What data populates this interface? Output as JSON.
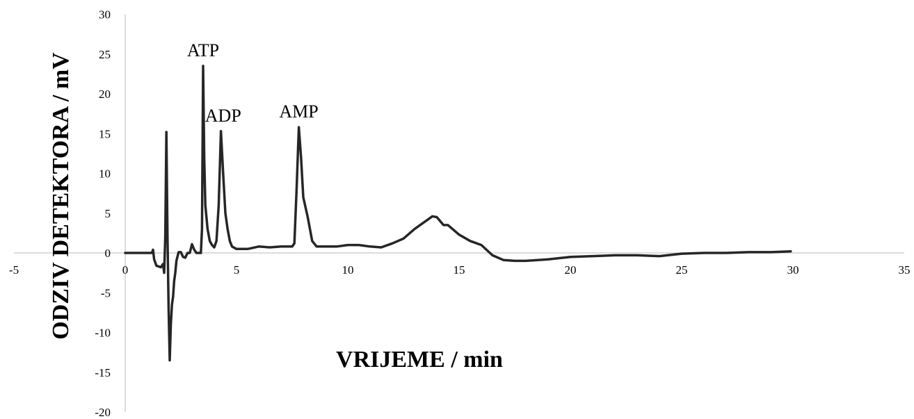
{
  "chart_data": {
    "type": "line",
    "title": "",
    "xlabel": "VRIJEME / min",
    "ylabel": "ODZIV DETEKTORA / mV",
    "xlim": [
      -5,
      35
    ],
    "ylim": [
      -20,
      30
    ],
    "xticks": [
      -5,
      0,
      5,
      10,
      15,
      20,
      25,
      30,
      35
    ],
    "yticks": [
      -20,
      -15,
      -10,
      -5,
      0,
      5,
      10,
      15,
      20,
      25,
      30
    ],
    "grid": false,
    "legend": "none",
    "line_color": "#262626",
    "annotations": [
      {
        "text": "ATP",
        "x": 3.5,
        "y": 23.5
      },
      {
        "text": "ADP",
        "x": 4.4,
        "y": 15.3
      },
      {
        "text": "AMP",
        "x": 7.8,
        "y": 15.8
      }
    ],
    "series": [
      {
        "x": [
          0,
          0.5,
          1.0,
          1.2,
          1.25,
          1.3,
          1.4,
          1.6,
          1.7,
          1.75,
          1.8,
          1.85,
          1.9,
          1.95,
          2.0,
          2.05,
          2.1,
          2.15,
          2.2,
          2.25,
          2.3,
          2.4,
          2.5,
          2.6,
          2.7,
          2.8,
          2.9,
          3.0,
          3.1,
          3.2,
          3.3,
          3.4,
          3.45,
          3.5,
          3.55,
          3.6,
          3.7,
          3.8,
          3.9,
          4.0,
          4.1,
          4.2,
          4.3,
          4.4,
          4.5,
          4.6,
          4.7,
          4.8,
          5.0,
          5.5,
          6.0,
          6.5,
          7.0,
          7.3,
          7.5,
          7.6,
          7.7,
          7.8,
          7.9,
          8.0,
          8.2,
          8.4,
          8.6,
          9.0,
          9.5,
          10.0,
          10.5,
          11.0,
          11.5,
          12.0,
          12.5,
          13.0,
          13.5,
          13.8,
          14.0,
          14.3,
          14.5,
          15.0,
          15.5,
          16.0,
          16.5,
          17.0,
          17.5,
          18.0,
          19.0,
          20.0,
          21.0,
          22.0,
          23.0,
          24.0,
          25.0,
          26.0,
          27.0,
          28.0,
          29.0,
          29.9
        ],
        "y": [
          0,
          0,
          0,
          0,
          0.4,
          -0.8,
          -1.6,
          -1.8,
          -1.4,
          -2.5,
          2.0,
          15.2,
          2.0,
          -7.0,
          -13.5,
          -9.0,
          -6.5,
          -5.5,
          -3.5,
          -2.5,
          -1.0,
          0.1,
          0.1,
          -0.5,
          -0.6,
          0.0,
          0.0,
          1.1,
          0.4,
          0.0,
          0.0,
          0.0,
          3.0,
          23.5,
          12.0,
          6.0,
          3.0,
          1.5,
          1.0,
          0.7,
          1.5,
          6.0,
          15.3,
          10.0,
          5.0,
          3.0,
          1.5,
          0.8,
          0.5,
          0.5,
          0.8,
          0.7,
          0.8,
          0.8,
          0.8,
          1.2,
          8.0,
          15.8,
          12.0,
          7.0,
          4.5,
          1.5,
          0.8,
          0.8,
          0.8,
          1.0,
          1.0,
          0.8,
          0.7,
          1.2,
          1.8,
          3.0,
          4.0,
          4.6,
          4.5,
          3.5,
          3.5,
          2.3,
          1.5,
          1.0,
          -0.3,
          -0.9,
          -1.0,
          -1.0,
          -0.8,
          -0.5,
          -0.4,
          -0.3,
          -0.3,
          -0.4,
          -0.1,
          0.0,
          0.0,
          0.1,
          0.1,
          0.2
        ]
      }
    ]
  }
}
